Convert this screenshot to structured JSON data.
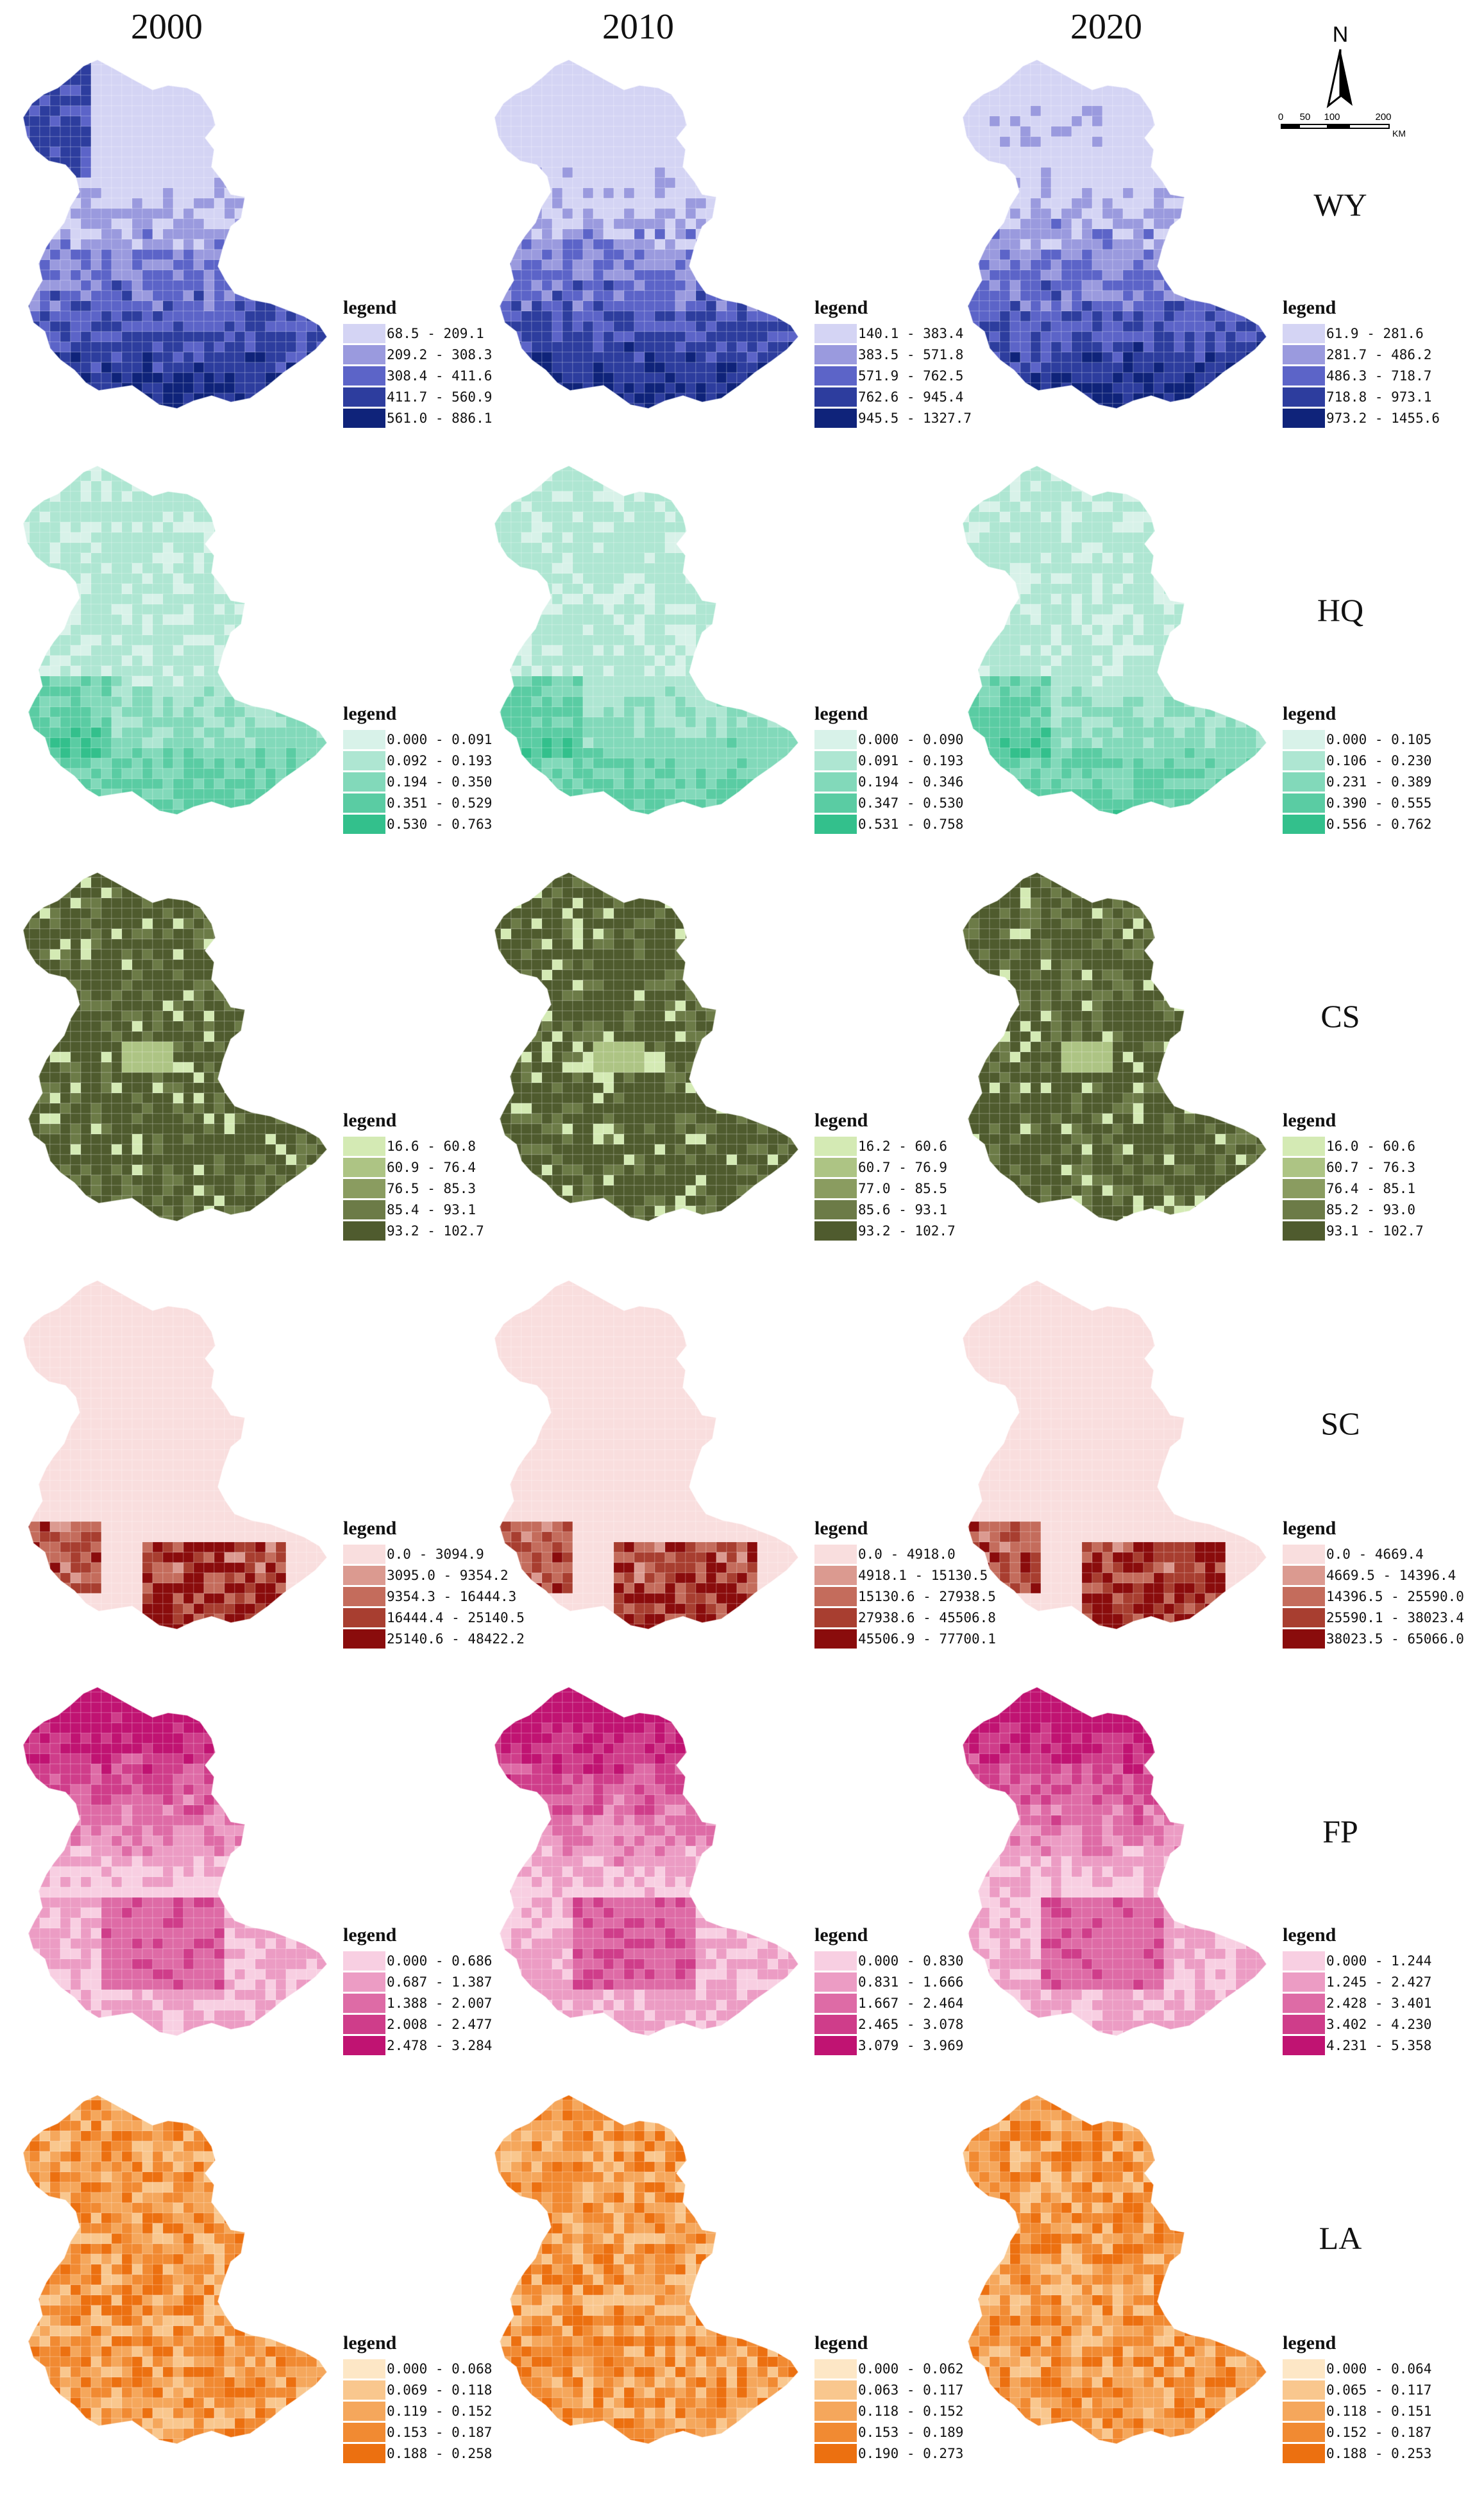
{
  "years": [
    "2000",
    "2010",
    "2020"
  ],
  "north_arrow": {
    "label": "N",
    "scale_ticks": [
      "0",
      "50",
      "100",
      "200"
    ],
    "scale_unit": "KM"
  },
  "rows": [
    {
      "label": "WY",
      "palette": [
        "#d4d4f4",
        "#9a9ade",
        "#5c64c8",
        "#2d3d9e",
        "#0f237a"
      ],
      "legends": [
        {
          "title": "legend",
          "ranges": [
            "68.5 - 209.1",
            "209.2 - 308.3",
            "308.4 - 411.6",
            "411.7 - 560.9",
            "561.0 - 886.1"
          ]
        },
        {
          "title": "legend",
          "ranges": [
            "140.1 - 383.4",
            "383.5 - 571.8",
            "571.9 - 762.5",
            "762.6 - 945.4",
            "945.5 - 1327.7"
          ]
        },
        {
          "title": "legend",
          "ranges": [
            "61.9 - 281.6",
            "281.7 - 486.2",
            "486.3 - 718.7",
            "718.8 - 973.1",
            "973.2 - 1455.6"
          ]
        }
      ]
    },
    {
      "label": "HQ",
      "palette": [
        "#d8f2e9",
        "#aee6d2",
        "#82d9ba",
        "#5acca3",
        "#33c08c"
      ],
      "legends": [
        {
          "title": "legend",
          "ranges": [
            "0.000 - 0.091",
            "0.092 - 0.193",
            "0.194 - 0.350",
            "0.351 - 0.529",
            "0.530 - 0.763"
          ]
        },
        {
          "title": "legend",
          "ranges": [
            "0.000 - 0.090",
            "0.091 - 0.193",
            "0.194 - 0.346",
            "0.347 - 0.530",
            "0.531 - 0.758"
          ]
        },
        {
          "title": "legend",
          "ranges": [
            "0.000 - 0.105",
            "0.106 - 0.230",
            "0.231 - 0.389",
            "0.390 - 0.555",
            "0.556 - 0.762"
          ]
        }
      ]
    },
    {
      "label": "CS",
      "palette": [
        "#d4eab4",
        "#adc484",
        "#8a9c60",
        "#6c7b47",
        "#4f5b2e"
      ],
      "legends": [
        {
          "title": "legend",
          "ranges": [
            "16.6 - 60.8",
            "60.9 - 76.4",
            "76.5 - 85.3",
            "85.4 - 93.1",
            "93.2 - 102.7"
          ]
        },
        {
          "title": "legend",
          "ranges": [
            "16.2 - 60.6",
            "60.7 - 76.9",
            "77.0 - 85.5",
            "85.6 - 93.1",
            "93.2 - 102.7"
          ]
        },
        {
          "title": "legend",
          "ranges": [
            "16.0 - 60.6",
            "60.7 - 76.3",
            "76.4 - 85.1",
            "85.2 - 93.0",
            "93.1 - 102.7"
          ]
        }
      ]
    },
    {
      "label": "SC",
      "palette": [
        "#f9dede",
        "#db9a90",
        "#c46c5c",
        "#a83e30",
        "#8a0c0c"
      ],
      "legends": [
        {
          "title": "legend",
          "ranges": [
            "0.0 - 3094.9",
            "3095.0 - 9354.2",
            "9354.3 - 16444.3",
            "16444.4 - 25140.5",
            "25140.6 - 48422.2"
          ]
        },
        {
          "title": "legend",
          "ranges": [
            "0.0 - 4918.0",
            "4918.1 - 15130.5",
            "15130.6 - 27938.5",
            "27938.6 - 45506.8",
            "45506.9 - 77700.1"
          ]
        },
        {
          "title": "legend",
          "ranges": [
            "0.0 - 4669.4",
            "4669.5 - 14396.4",
            "14396.5 - 25590.0",
            "25590.1 - 38023.4",
            "38023.5 - 65066.0"
          ]
        }
      ]
    },
    {
      "label": "FP",
      "palette": [
        "#f8cfe2",
        "#ec9cc4",
        "#de6ba6",
        "#cf3d8a",
        "#c01372"
      ],
      "legends": [
        {
          "title": "legend",
          "ranges": [
            "0.000 - 0.686",
            "0.687 - 1.387",
            "1.388 - 2.007",
            "2.008 - 2.477",
            "2.478 - 3.284"
          ]
        },
        {
          "title": "legend",
          "ranges": [
            "0.000 - 0.830",
            "0.831 - 1.666",
            "1.667 - 2.464",
            "2.465 - 3.078",
            "3.079 - 3.969"
          ]
        },
        {
          "title": "legend",
          "ranges": [
            "0.000 - 1.244",
            "1.245 - 2.427",
            "2.428 - 3.401",
            "3.402 - 4.230",
            "4.231 - 5.358"
          ]
        }
      ]
    },
    {
      "label": "LA",
      "palette": [
        "#fde7c6",
        "#f9c78e",
        "#f5a75c",
        "#f18a32",
        "#ec7010"
      ],
      "legends": [
        {
          "title": "legend",
          "ranges": [
            "0.000 - 0.068",
            "0.069 - 0.118",
            "0.119 - 0.152",
            "0.153 - 0.187",
            "0.188 - 0.258"
          ]
        },
        {
          "title": "legend",
          "ranges": [
            "0.000 - 0.062",
            "0.063 - 0.117",
            "0.118 - 0.152",
            "0.153 - 0.189",
            "0.190 - 0.273"
          ]
        },
        {
          "title": "legend",
          "ranges": [
            "0.000 - 0.064",
            "0.065 - 0.117",
            "0.118 - 0.151",
            "0.152 - 0.187",
            "0.188 - 0.253"
          ]
        }
      ]
    }
  ]
}
